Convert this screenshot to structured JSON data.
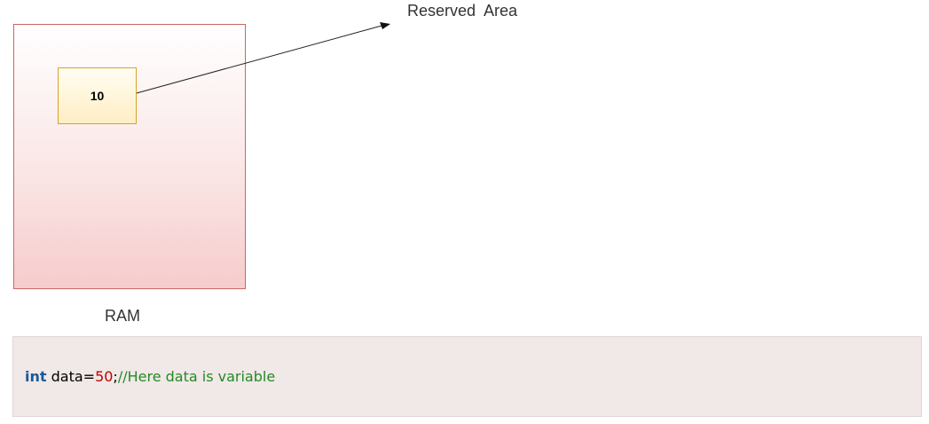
{
  "diagram": {
    "memory_label": "RAM",
    "cell_value": "10",
    "pointer_label": "Reserved  Area",
    "colors": {
      "ram_border": "#cc6666",
      "ram_fill_bottom": "#f6cccc",
      "cell_border": "#d6a327",
      "cell_fill": "#ffeec4"
    }
  },
  "code": {
    "keyword": "int",
    "identifier": " data=",
    "number": "50",
    "semicolon": ";",
    "comment": "//Here data is variable",
    "colors": {
      "keyword": "#1a5b9a",
      "number": "#c00000",
      "comment": "#228b22",
      "background": "#f1e8e8"
    }
  }
}
